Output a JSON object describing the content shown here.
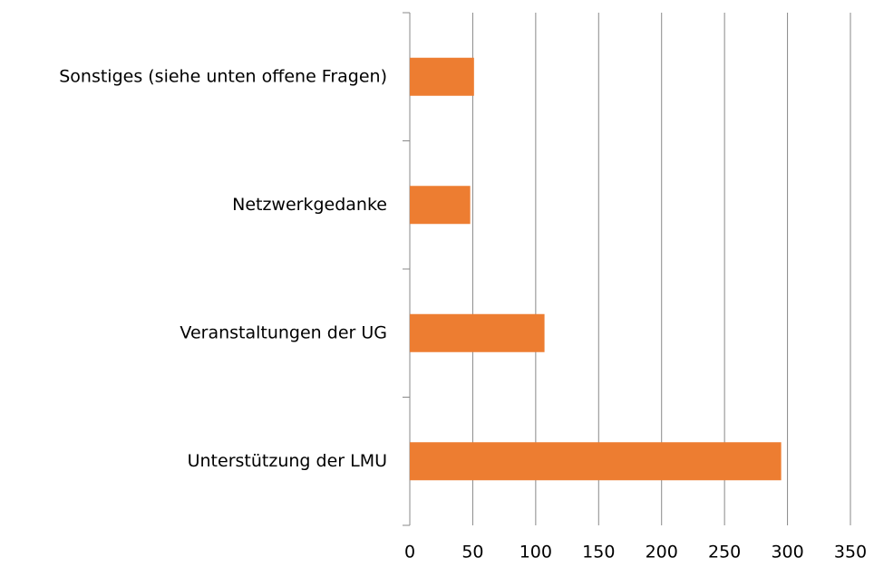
{
  "chart_data": {
    "type": "bar",
    "orientation": "horizontal",
    "categories": [
      "Unterstützung der LMU",
      "Veranstaltungen der UG",
      "Netzwerkgedanke",
      "Sonstiges (siehe unten offene Fragen)"
    ],
    "values": [
      295,
      107,
      48,
      51
    ],
    "color": "#ed7d31",
    "xlim": [
      0,
      350
    ],
    "xticks": [
      0,
      50,
      100,
      150,
      200,
      250,
      300,
      350
    ],
    "grid": true
  }
}
